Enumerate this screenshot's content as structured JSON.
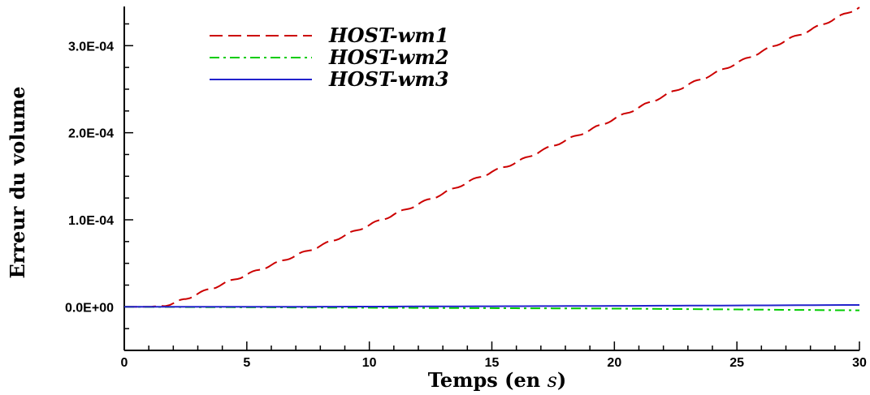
{
  "chart_data": {
    "type": "line",
    "xlabel": "Temps (en s)",
    "xlabel_main": "Temps (en ",
    "xlabel_var": "s",
    "xlabel_close": ")",
    "ylabel": "Erreur du volume",
    "xlim": [
      0,
      30
    ],
    "ylim": [
      -5e-05,
      0.000345
    ],
    "xticks": [
      0,
      5,
      10,
      15,
      20,
      25,
      30
    ],
    "xtick_labels": [
      "0",
      "5",
      "10",
      "15",
      "20",
      "25",
      "30"
    ],
    "yticks": [
      0.0,
      0.0001,
      0.0002,
      0.0003
    ],
    "ytick_labels": [
      "0.0E+00",
      "1.0E-04",
      "2.0E-04",
      "3.0E-04"
    ],
    "grid": false,
    "legend_position": "top-left",
    "series": [
      {
        "name": "HOST-wm1",
        "color": "#cc0000",
        "style": "dashed",
        "x": [
          0,
          1,
          1.5,
          2,
          2.5,
          3,
          4,
          5,
          6,
          7,
          8,
          9,
          10,
          11,
          12,
          13,
          14,
          15,
          16,
          17,
          18,
          19,
          20,
          21,
          22,
          23,
          24,
          25,
          26,
          27,
          28,
          29,
          30
        ],
        "y": [
          0.0,
          0.0,
          1e-06,
          4e-06,
          9e-06,
          1.5e-05,
          2.6e-05,
          3.7e-05,
          4.8e-05,
          5.9e-05,
          7e-05,
          8.2e-05,
          9.4e-05,
          0.000106,
          0.000118,
          0.00013,
          0.000143,
          0.000155,
          0.000166,
          0.000179,
          0.000191,
          0.000203,
          0.000216,
          0.000229,
          0.000242,
          0.000255,
          0.000267,
          0.00028,
          0.000293,
          0.000306,
          0.000318,
          0.000331,
          0.000344
        ]
      },
      {
        "name": "HOST-wm2",
        "color": "#00cc00",
        "style": "dash-dot",
        "x": [
          0,
          5,
          10,
          15,
          20,
          25,
          30
        ],
        "y": [
          0.0,
          -5e-07,
          -1e-06,
          -1.5e-06,
          -2e-06,
          -3e-06,
          -4e-06
        ]
      },
      {
        "name": "HOST-wm3",
        "color": "#2222cc",
        "style": "solid",
        "x": [
          0,
          5,
          10,
          15,
          20,
          25,
          30
        ],
        "y": [
          0.0,
          0.0,
          3e-07,
          7e-07,
          1.1e-06,
          1.6e-06,
          2.2e-06
        ]
      }
    ]
  }
}
